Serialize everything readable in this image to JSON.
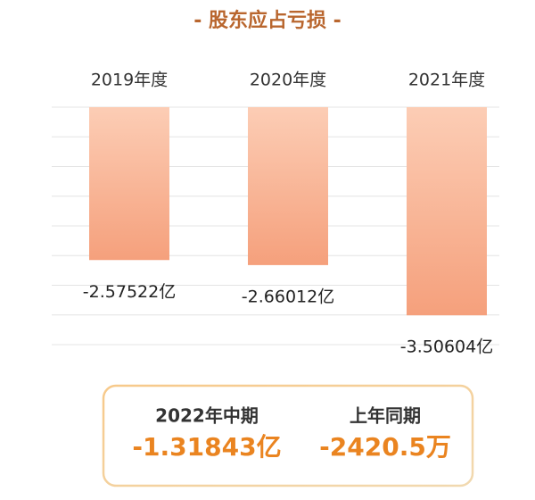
{
  "chart_data": {
    "type": "bar",
    "title": "- 股东应占亏损 -",
    "categories": [
      "2019年度",
      "2020年度",
      "2021年度"
    ],
    "values": [
      -2.57522,
      -2.66012,
      -3.50604
    ],
    "value_labels": [
      "-2.57522亿",
      "-2.66012亿",
      "-3.50604亿"
    ],
    "color": "#f5a07c",
    "ylim": [
      -4,
      0
    ],
    "yticks": [
      -4,
      -3.5,
      -3,
      -2.5,
      -2,
      -1.5,
      -1,
      -0.5,
      0
    ],
    "grid": true
  },
  "summary": [
    {
      "label": "2022年中期",
      "value": "-1.31843亿"
    },
    {
      "label": "上年同期",
      "value": "-2420.5万"
    }
  ]
}
